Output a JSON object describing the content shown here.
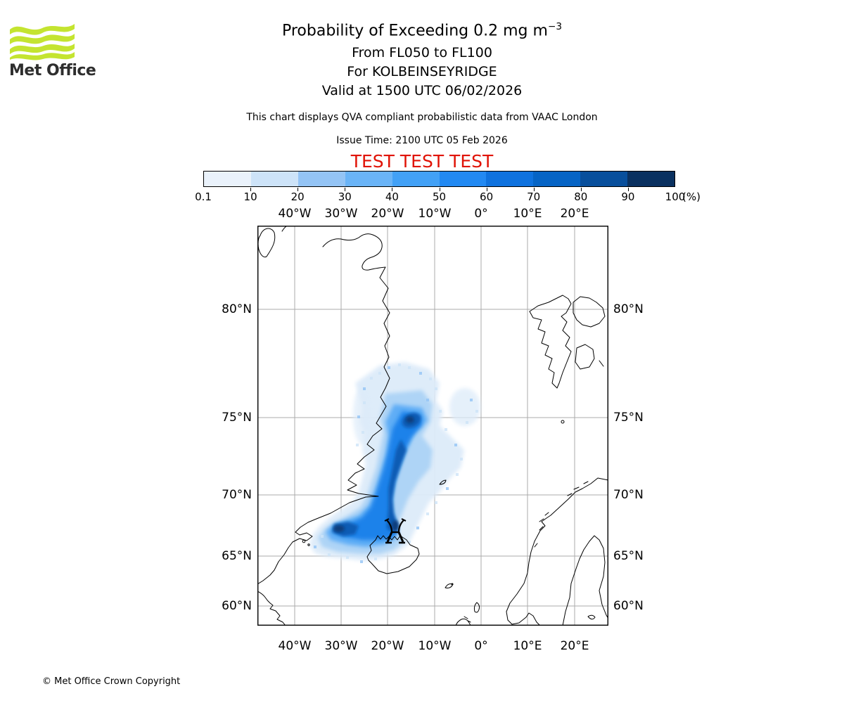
{
  "logo": {
    "brand": "Met Office",
    "wave_color": "#c4e430",
    "text_color": "#2e2e2e"
  },
  "header": {
    "title_main": "Probability of Exceeding 0.2 mg m",
    "title_sup": "−3",
    "subtitle_flight_levels": "From FL050 to FL100",
    "subtitle_volcano": "For KOLBEINSEYRIDGE",
    "subtitle_valid": "Valid at 1500 UTC 06/02/2026",
    "description": "This chart displays QVA compliant probabilistic data from VAAC London",
    "issue_time": "Issue Time: 2100 UTC 05 Feb 2026",
    "test_banner": "TEST TEST TEST",
    "test_color": "#e01306"
  },
  "colorbar": {
    "tick_labels": [
      "0.1",
      "10",
      "20",
      "30",
      "40",
      "50",
      "60",
      "70",
      "80",
      "90",
      "100"
    ],
    "unit_label": "(%)",
    "segment_colors": [
      "#eaf2fb",
      "#cde3f8",
      "#94c4f5",
      "#6ab4f7",
      "#42a1f6",
      "#2289f2",
      "#0f72de",
      "#0664c5",
      "#084f9c",
      "#0a3160"
    ]
  },
  "map": {
    "x_tick_labels": [
      "40°W",
      "30°W",
      "20°W",
      "10°W",
      "0°",
      "10°E",
      "20°E"
    ],
    "y_tick_labels": [
      "80°N",
      "75°N",
      "70°N",
      "65°N",
      "60°N"
    ],
    "volcano_name": "KOLBEINSEYRIDGE"
  },
  "chart_data": {
    "type": "heatmap",
    "title": "Probability of Exceeding 0.2 mg m^-3, FL050 to FL100, KOLBEINSEYRIDGE, valid 1500 UTC 06/02/2026",
    "legend_percent_thresholds": [
      0.1,
      10,
      20,
      30,
      40,
      50,
      60,
      70,
      80,
      90,
      100
    ],
    "projection": "mercator",
    "lon_range_deg": [
      -48,
      27
    ],
    "lat_range_deg": [
      57.8,
      82.7
    ],
    "x_ticks_deg": [
      -40,
      -30,
      -20,
      -10,
      0,
      10,
      20
    ],
    "y_ticks_deg": [
      80,
      75,
      70,
      65,
      60
    ],
    "volcano_location_deg": {
      "lat": 66.7,
      "lon": -18.4
    },
    "plume_axis_deg": [
      {
        "lon": -33,
        "lat": 67.5
      },
      {
        "lon": -26,
        "lat": 67.8
      },
      {
        "lon": -18.4,
        "lat": 66.7
      },
      {
        "lon": -17.5,
        "lat": 70.5
      },
      {
        "lon": -15,
        "lat": 73.5
      },
      {
        "lon": -14.5,
        "lat": 75.2
      }
    ],
    "max_probability_band_percent": "90-100 near volcano and at 75N/-15E and 68N/-29E cores"
  },
  "footer": {
    "copyright": "© Met Office Crown Copyright"
  }
}
